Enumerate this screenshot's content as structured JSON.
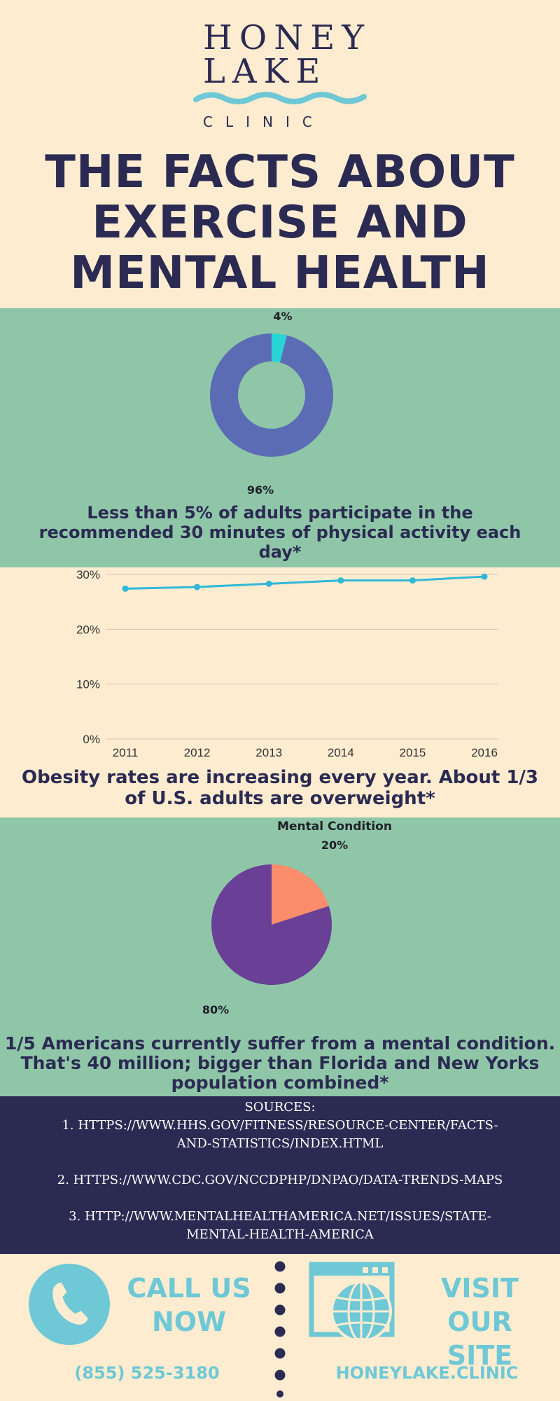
{
  "logo": {
    "line1": "HONEY",
    "line2": "LAKE",
    "sub": "CLINIC",
    "wave_color": "#6ec8d6"
  },
  "title": {
    "line1": "THE FACTS ABOUT",
    "line2": "EXERCISE AND",
    "line3": "MENTAL HEALTH"
  },
  "section1": {
    "caption": "Less than 5% of adults participate in the recommended 30 minutes of physical activity each day*"
  },
  "section2": {
    "caption": "Obesity rates are increasing every year. About 1/3 of U.S. adults are overweight*"
  },
  "section3": {
    "caption": "1/5 Americans currently suffer from a mental condition. That's 40 million; bigger than Florida and New Yorks population combined*"
  },
  "sources": {
    "heading": "SOURCES:",
    "items": [
      "1. HTTPS://WWW.HHS.GOV/FITNESS/RESOURCE-CENTER/FACTS-AND-STATISTICS/INDEX.HTML",
      "2. HTTPS://WWW.CDC.GOV/NCCDPHP/DNPAO/DATA-TRENDS-MAPS",
      "3. HTTP://WWW.MENTALHEALTHAMERICA.NET/ISSUES/STATE-MENTAL-HEALTH-AMERICA"
    ]
  },
  "footer": {
    "call_label_1": "CALL US",
    "call_label_2": "NOW",
    "phone": "(855) 525-3180",
    "visit_label_1": "VISIT OUR",
    "visit_label_2": "SITE",
    "site": "HONEYLAKE.CLINIC",
    "accent": "#6ec8d6",
    "icons": [
      "phone-icon",
      "globe-icon"
    ]
  },
  "colors": {
    "cream": "#fdecd0",
    "green": "#8fc6a8",
    "navy": "#2b2a52"
  },
  "chart_data": [
    {
      "type": "pie",
      "style": "donut",
      "slices": [
        {
          "value": 4,
          "label": "4%",
          "color": "#27d4d6"
        },
        {
          "value": 96,
          "label": "96%",
          "color": "#5b6cb4"
        }
      ]
    },
    {
      "type": "line",
      "x": [
        "2011",
        "2012",
        "2013",
        "2014",
        "2015",
        "2016"
      ],
      "series": [
        {
          "values": [
            27.4,
            27.7,
            28.3,
            28.9,
            28.9,
            29.6
          ],
          "color": "#2fb8d8"
        }
      ],
      "ylim": [
        0,
        30
      ],
      "yticks": [
        "0%",
        "10%",
        "20%",
        "30%"
      ],
      "ytick_values": [
        0,
        10,
        20,
        30
      ],
      "grid": true
    },
    {
      "type": "pie",
      "title": "Mental Condition",
      "slices": [
        {
          "value": 20,
          "label": "20%",
          "color": "#fb8c6c"
        },
        {
          "value": 80,
          "label": "80%",
          "color": "#6a3f96"
        }
      ]
    }
  ]
}
